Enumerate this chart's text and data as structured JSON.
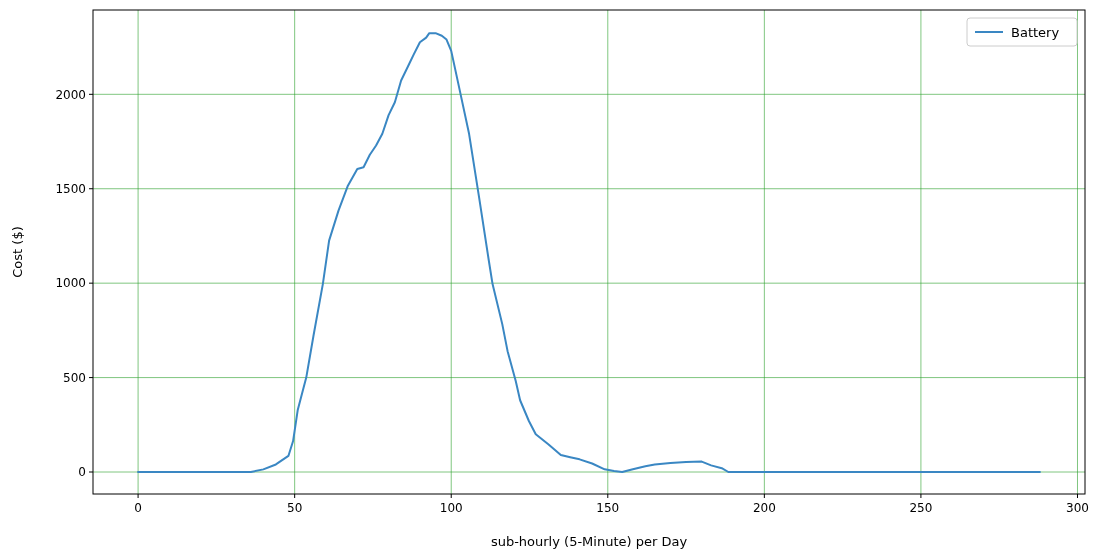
{
  "chart_data": {
    "type": "line",
    "xlabel": "sub-hourly (5-Minute) per Day",
    "ylabel": "Cost ($)",
    "xlim": [
      -14.4,
      302.4
    ],
    "ylim": [
      -116.5,
      2446.5
    ],
    "xticks": [
      0,
      50,
      100,
      150,
      200,
      250,
      300
    ],
    "yticks": [
      0,
      500,
      1000,
      1500,
      2000
    ],
    "grid": true,
    "legend": "top right",
    "series": [
      {
        "name": "Battery",
        "color": "#3a87c3",
        "x": [
          0,
          36,
          40,
          44,
          48,
          49.5,
          51,
          53.7,
          56,
          59,
          61,
          64,
          67,
          70,
          72,
          74,
          76,
          78,
          80,
          82,
          84,
          86.6,
          88,
          90,
          92,
          93,
          95,
          97,
          98.5,
          100,
          102.5,
          105.7,
          108.9,
          112,
          113.2,
          116.3,
          118,
          120.6,
          122,
          124.8,
          127,
          131,
          135,
          138,
          141,
          145,
          149,
          152,
          154.6,
          158,
          162,
          165,
          170,
          175,
          180,
          183,
          186.4,
          188.5,
          200,
          250,
          288
        ],
        "values": [
          0,
          0,
          14,
          40,
          85,
          164,
          330,
          500,
          720,
          995,
          1225,
          1384,
          1516,
          1605,
          1614,
          1680,
          1729,
          1791,
          1890,
          1958,
          2073,
          2162,
          2210,
          2276,
          2300,
          2324,
          2324,
          2310,
          2290,
          2230,
          2038,
          1791,
          1454,
          1120,
          995,
          783,
          640,
          482,
          380,
          270,
          200,
          147,
          90,
          78,
          67,
          45,
          14,
          5,
          0,
          15,
          30,
          40,
          48,
          53,
          55,
          35,
          20,
          0,
          0,
          0,
          0
        ]
      }
    ]
  }
}
